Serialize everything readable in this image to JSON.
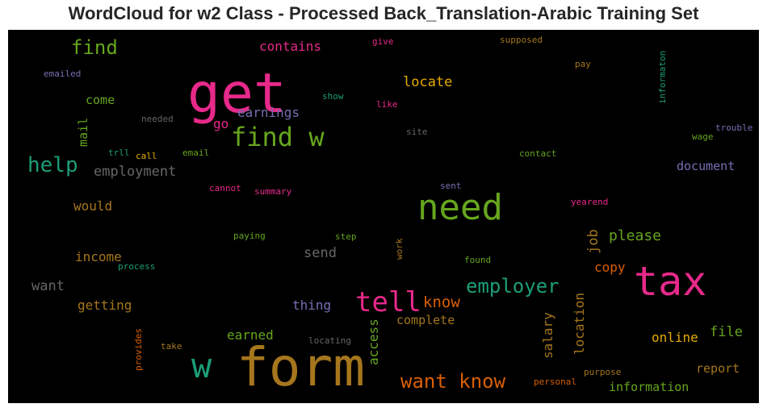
{
  "chart_data": {
    "type": "wordcloud",
    "title": "WordCloud for w2 Class - Processed Back_Translation-Arabic Training Set",
    "background": "#000000",
    "palette": "Dark2",
    "colors": {
      "pink": "#e7298a",
      "green": "#66a61e",
      "orange": "#d95f02",
      "teal": "#1b9e77",
      "purple": "#7570b3",
      "gold": "#e6ab02",
      "brown": "#a6761d",
      "gray": "#666666"
    },
    "words": [
      {
        "text": "form",
        "rank": 1,
        "color": "brown",
        "orientation": "horizontal"
      },
      {
        "text": "get",
        "rank": 2,
        "color": "pink",
        "orientation": "horizontal"
      },
      {
        "text": "tax",
        "rank": 3,
        "color": "pink",
        "orientation": "horizontal"
      },
      {
        "text": "need",
        "rank": 4,
        "color": "green",
        "orientation": "horizontal"
      },
      {
        "text": "w",
        "rank": 5,
        "color": "teal",
        "orientation": "horizontal"
      },
      {
        "text": "find w",
        "rank": 6,
        "color": "green",
        "orientation": "horizontal"
      },
      {
        "text": "tell",
        "rank": 7,
        "color": "pink",
        "orientation": "horizontal"
      },
      {
        "text": "want know",
        "rank": 8,
        "color": "orange",
        "orientation": "horizontal"
      },
      {
        "text": "employer",
        "rank": 9,
        "color": "teal",
        "orientation": "horizontal"
      },
      {
        "text": "help",
        "rank": 10,
        "color": "teal",
        "orientation": "horizontal"
      },
      {
        "text": "find",
        "rank": 11,
        "color": "green",
        "orientation": "horizontal"
      },
      {
        "text": "know",
        "rank": 12,
        "color": "orange",
        "orientation": "horizontal"
      },
      {
        "text": "employment",
        "rank": 13,
        "color": "gray",
        "orientation": "horizontal"
      },
      {
        "text": "please",
        "rank": 14,
        "color": "green",
        "orientation": "horizontal"
      },
      {
        "text": "locate",
        "rank": 15,
        "color": "gold",
        "orientation": "horizontal"
      },
      {
        "text": "earnings",
        "rank": 16,
        "color": "purple",
        "orientation": "horizontal"
      },
      {
        "text": "contains",
        "rank": 17,
        "color": "pink",
        "orientation": "horizontal"
      },
      {
        "text": "document",
        "rank": 18,
        "color": "purple",
        "orientation": "horizontal"
      },
      {
        "text": "send",
        "rank": 19,
        "color": "gray",
        "orientation": "horizontal"
      },
      {
        "text": "want",
        "rank": 20,
        "color": "gray",
        "orientation": "horizontal"
      },
      {
        "text": "income",
        "rank": 21,
        "color": "brown",
        "orientation": "horizontal"
      },
      {
        "text": "getting",
        "rank": 22,
        "color": "brown",
        "orientation": "horizontal"
      },
      {
        "text": "would",
        "rank": 23,
        "color": "brown",
        "orientation": "horizontal"
      },
      {
        "text": "thing",
        "rank": 24,
        "color": "purple",
        "orientation": "horizontal"
      },
      {
        "text": "complete",
        "rank": 25,
        "color": "brown",
        "orientation": "horizontal"
      },
      {
        "text": "copy",
        "rank": 26,
        "color": "orange",
        "orientation": "horizontal"
      },
      {
        "text": "file",
        "rank": 27,
        "color": "green",
        "orientation": "horizontal"
      },
      {
        "text": "online",
        "rank": 28,
        "color": "gold",
        "orientation": "horizontal"
      },
      {
        "text": "report",
        "rank": 29,
        "color": "brown",
        "orientation": "horizontal"
      },
      {
        "text": "information",
        "rank": 30,
        "color": "green",
        "orientation": "horizontal"
      },
      {
        "text": "earned",
        "rank": 31,
        "color": "green",
        "orientation": "horizontal"
      },
      {
        "text": "come",
        "rank": 32,
        "color": "green",
        "orientation": "horizontal"
      },
      {
        "text": "go",
        "rank": 33,
        "color": "pink",
        "orientation": "horizontal"
      },
      {
        "text": "job",
        "rank": 34,
        "color": "brown",
        "orientation": "vertical"
      },
      {
        "text": "location",
        "rank": 35,
        "color": "brown",
        "orientation": "vertical"
      },
      {
        "text": "salary",
        "rank": 36,
        "color": "brown",
        "orientation": "vertical"
      },
      {
        "text": "access",
        "rank": 37,
        "color": "green",
        "orientation": "vertical"
      },
      {
        "text": "mail",
        "rank": 38,
        "color": "green",
        "orientation": "vertical"
      },
      {
        "text": "informaton",
        "rank": 39,
        "color": "teal",
        "orientation": "vertical"
      },
      {
        "text": "provides",
        "rank": 40,
        "color": "orange",
        "orientation": "vertical"
      },
      {
        "text": "work",
        "rank": 41,
        "color": "brown",
        "orientation": "vertical"
      },
      {
        "text": "emailed",
        "rank": 42,
        "color": "purple",
        "orientation": "horizontal"
      },
      {
        "text": "give",
        "rank": 43,
        "color": "pink",
        "orientation": "horizontal"
      },
      {
        "text": "supposed",
        "rank": 44,
        "color": "brown",
        "orientation": "horizontal"
      },
      {
        "text": "pay",
        "rank": 45,
        "color": "brown",
        "orientation": "horizontal"
      },
      {
        "text": "show",
        "rank": 46,
        "color": "teal",
        "orientation": "horizontal"
      },
      {
        "text": "like",
        "rank": 47,
        "color": "pink",
        "orientation": "horizontal"
      },
      {
        "text": "needed",
        "rank": 48,
        "color": "gray",
        "orientation": "horizontal"
      },
      {
        "text": "site",
        "rank": 49,
        "color": "gray",
        "orientation": "horizontal"
      },
      {
        "text": "trouble",
        "rank": 50,
        "color": "purple",
        "orientation": "horizontal"
      },
      {
        "text": "wage",
        "rank": 51,
        "color": "green",
        "orientation": "horizontal"
      },
      {
        "text": "trll",
        "rank": 52,
        "color": "teal",
        "orientation": "horizontal"
      },
      {
        "text": "call",
        "rank": 53,
        "color": "gold",
        "orientation": "horizontal"
      },
      {
        "text": "email",
        "rank": 54,
        "color": "green",
        "orientation": "horizontal"
      },
      {
        "text": "contact",
        "rank": 55,
        "color": "green",
        "orientation": "horizontal"
      },
      {
        "text": "cannot",
        "rank": 56,
        "color": "pink",
        "orientation": "horizontal"
      },
      {
        "text": "summary",
        "rank": 57,
        "color": "pink",
        "orientation": "horizontal"
      },
      {
        "text": "sent",
        "rank": 58,
        "color": "purple",
        "orientation": "horizontal"
      },
      {
        "text": "yearend",
        "rank": 59,
        "color": "pink",
        "orientation": "horizontal"
      },
      {
        "text": "paying",
        "rank": 60,
        "color": "green",
        "orientation": "horizontal"
      },
      {
        "text": "step",
        "rank": 61,
        "color": "green",
        "orientation": "horizontal"
      },
      {
        "text": "found",
        "rank": 62,
        "color": "green",
        "orientation": "horizontal"
      },
      {
        "text": "process",
        "rank": 63,
        "color": "teal",
        "orientation": "horizontal"
      },
      {
        "text": "take",
        "rank": 64,
        "color": "brown",
        "orientation": "horizontal"
      },
      {
        "text": "locating",
        "rank": 65,
        "color": "gray",
        "orientation": "horizontal"
      },
      {
        "text": "purpose",
        "rank": 66,
        "color": "brown",
        "orientation": "horizontal"
      },
      {
        "text": "personal",
        "rank": 67,
        "color": "orange",
        "orientation": "horizontal"
      }
    ]
  }
}
